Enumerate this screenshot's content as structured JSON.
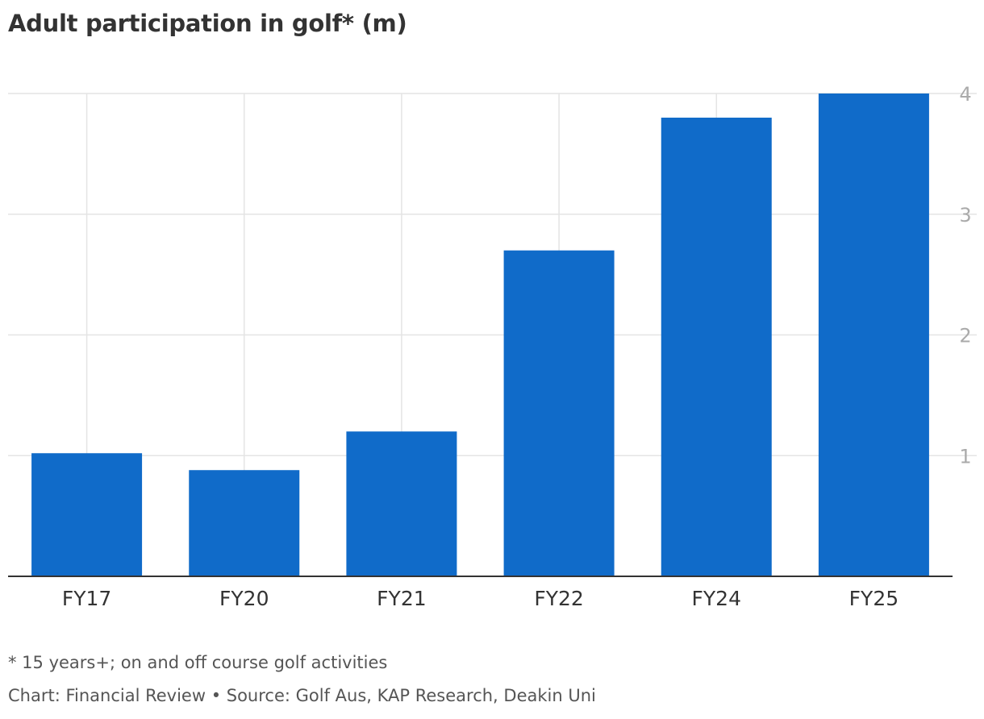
{
  "colors": {
    "bar": "#106bc9",
    "grid": "#e4e4e4",
    "axis": "#333333",
    "tick_y": "#aaaaaa",
    "tick_x": "#333333",
    "title": "#333333",
    "note": "#555555"
  },
  "footnote": "* 15 years+; on and off course golf activities",
  "credit": "Chart: Financial Review • Source: Golf Aus, KAP Research, Deakin Uni",
  "chart_data": {
    "type": "bar",
    "title": "Adult participation in golf* (m)",
    "categories": [
      "FY17",
      "FY20",
      "FY21",
      "FY22",
      "FY24",
      "FY25"
    ],
    "values": [
      1.02,
      0.88,
      1.2,
      2.7,
      3.8,
      4.0
    ],
    "ylim": [
      0,
      4
    ],
    "yticks": [
      1,
      2,
      3,
      4
    ],
    "y_axis_side": "right",
    "grid": true,
    "xlabel": "",
    "ylabel": ""
  }
}
